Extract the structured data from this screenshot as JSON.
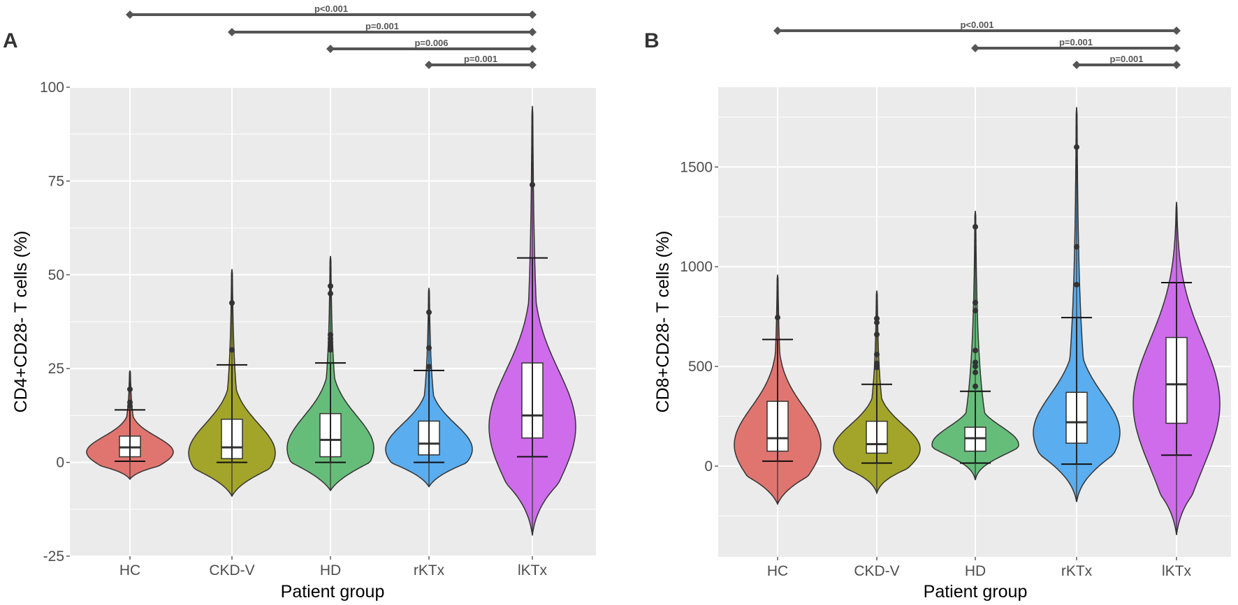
{
  "chart_data": [
    {
      "panel": "A",
      "type": "violin",
      "title": "",
      "xlabel": "Patient group",
      "ylabel": "CD4+CD28- T cells (%)",
      "ylim": [
        -25,
        100
      ],
      "yticks": [
        -25,
        0,
        25,
        50,
        75,
        100
      ],
      "ytick_labels": [
        "-25",
        "0",
        "25",
        "50",
        "75",
        "100"
      ],
      "grid": true,
      "categories": [
        "HC",
        "CKD-V",
        "HD",
        "rKTx",
        "lKTx"
      ],
      "colors": [
        "#E07570",
        "#A3A52A",
        "#66BD7A",
        "#5AADEE",
        "#CF6CEB"
      ],
      "groups": [
        {
          "name": "HC",
          "q1": 1.5,
          "median": 4,
          "q3": 7,
          "whisker_low": 0.3,
          "whisker_high": 14,
          "violin_min": -4.5,
          "violin_max": 24.5,
          "outliers": [
            15,
            16,
            19.5
          ]
        },
        {
          "name": "CKD-V",
          "q1": 1,
          "median": 4,
          "q3": 11.5,
          "whisker_low": 0,
          "whisker_high": 26,
          "violin_min": -9,
          "violin_max": 51.5,
          "outliers": [
            30,
            42.5
          ]
        },
        {
          "name": "HD",
          "q1": 1.5,
          "median": 6,
          "q3": 13,
          "whisker_low": 0,
          "whisker_high": 26.5,
          "violin_min": -7.5,
          "violin_max": 55,
          "outliers": [
            30,
            31,
            32,
            33,
            34,
            45,
            47
          ]
        },
        {
          "name": "rKTx",
          "q1": 2,
          "median": 5,
          "q3": 11,
          "whisker_low": 0,
          "whisker_high": 24.5,
          "violin_min": -6.5,
          "violin_max": 46.5,
          "outliers": [
            25.5,
            30.5,
            40
          ]
        },
        {
          "name": "lKTx",
          "q1": 6.5,
          "median": 12.5,
          "q3": 26.5,
          "whisker_low": 1.5,
          "whisker_high": 54.5,
          "violin_min": -19.5,
          "violin_max": 95,
          "outliers": [
            74
          ]
        }
      ],
      "significance": [
        {
          "from": "HC",
          "to": "lKTx",
          "label": "p<0.001"
        },
        {
          "from": "CKD-V",
          "to": "lKTx",
          "label": "p=0.001"
        },
        {
          "from": "HD",
          "to": "lKTx",
          "label": "p=0.006"
        },
        {
          "from": "rKTx",
          "to": "lKTx",
          "label": "p=0.001"
        }
      ]
    },
    {
      "panel": "B",
      "type": "violin",
      "title": "",
      "xlabel": "Patient group",
      "ylabel": "CD8+CD28- T cells (%)",
      "ylim": [
        -455,
        1900
      ],
      "yticks": [
        0,
        500,
        1000,
        1500
      ],
      "ytick_labels": [
        "0",
        "500",
        "1000",
        "1500"
      ],
      "grid": true,
      "categories": [
        "HC",
        "CKD-V",
        "HD",
        "rKTx",
        "lKTx"
      ],
      "colors": [
        "#E07570",
        "#A3A52A",
        "#66BD7A",
        "#5AADEE",
        "#CF6CEB"
      ],
      "groups": [
        {
          "name": "HC",
          "q1": 75,
          "median": 140,
          "q3": 325,
          "whisker_low": 25,
          "whisker_high": 635,
          "violin_min": -190,
          "violin_max": 960,
          "outliers": [
            745
          ]
        },
        {
          "name": "CKD-V",
          "q1": 65,
          "median": 110,
          "q3": 225,
          "whisker_low": 15,
          "whisker_high": 410,
          "violin_min": -135,
          "violin_max": 880,
          "outliers": [
            495,
            515,
            560,
            660,
            720,
            740
          ]
        },
        {
          "name": "HD",
          "q1": 75,
          "median": 140,
          "q3": 195,
          "whisker_low": 15,
          "whisker_high": 375,
          "violin_min": -70,
          "violin_max": 1280,
          "outliers": [
            400,
            470,
            500,
            520,
            580,
            780,
            820,
            1200
          ]
        },
        {
          "name": "rKTx",
          "q1": 115,
          "median": 220,
          "q3": 370,
          "whisker_low": 10,
          "whisker_high": 745,
          "violin_min": -180,
          "violin_max": 1800,
          "outliers": [
            910,
            1100,
            1600
          ]
        },
        {
          "name": "lKTx",
          "q1": 215,
          "median": 410,
          "q3": 645,
          "whisker_low": 55,
          "whisker_high": 920,
          "violin_min": -345,
          "violin_max": 1325,
          "outliers": []
        }
      ],
      "significance": [
        {
          "from": "HC",
          "to": "lKTx",
          "label": "p<0.001"
        },
        {
          "from": "HD",
          "to": "lKTx",
          "label": "p=0.001"
        },
        {
          "from": "rKTx",
          "to": "lKTx",
          "label": "p=0.001"
        }
      ]
    }
  ]
}
